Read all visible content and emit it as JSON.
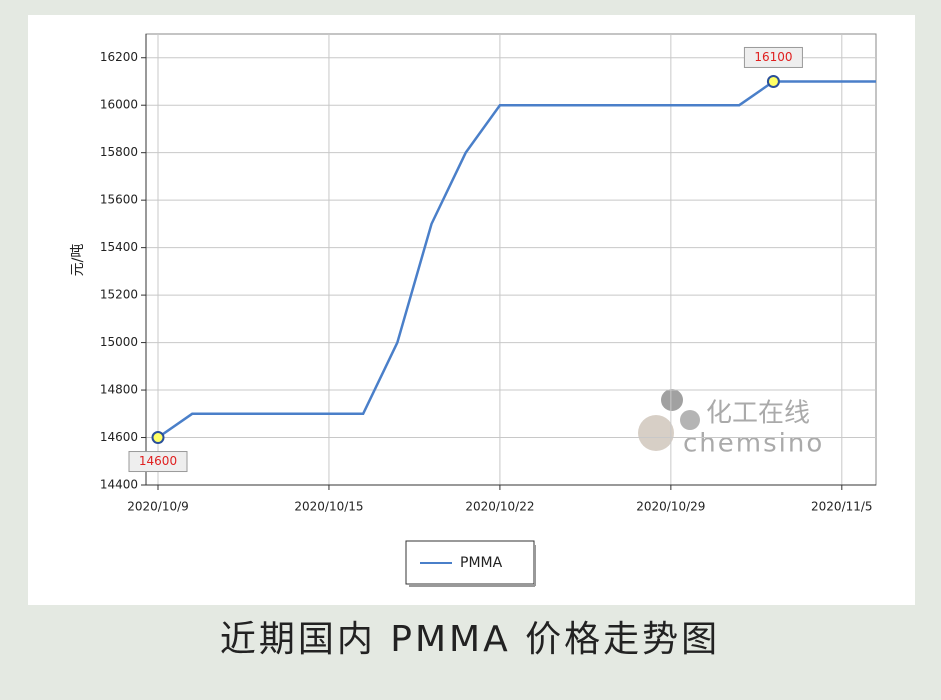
{
  "chart_data": {
    "type": "line",
    "title": "近期国内 PMMA 价格走势图",
    "y_label": "元/吨",
    "categories": [
      "2020/10/9",
      null,
      null,
      null,
      null,
      "2020/10/15",
      null,
      null,
      null,
      null,
      "2020/10/22",
      null,
      null,
      null,
      null,
      "2020/10/29",
      null,
      null,
      null,
      null,
      "2020/11/5",
      null
    ],
    "series": [
      {
        "name": "PMMA",
        "color": "#4a7fc9",
        "values": [
          14600,
          14700,
          14700,
          14700,
          14700,
          14700,
          14700,
          15000,
          15500,
          15800,
          16000,
          16000,
          16000,
          16000,
          16000,
          16000,
          16000,
          16000,
          16100,
          16100,
          16100,
          16100
        ]
      }
    ],
    "ylim": [
      14400,
      16300
    ],
    "yticks": [
      14400,
      14600,
      14800,
      15000,
      15200,
      15400,
      15600,
      15800,
      16000,
      16200
    ],
    "grid": true,
    "watermark": [
      "化工在线",
      "chemsino"
    ]
  }
}
